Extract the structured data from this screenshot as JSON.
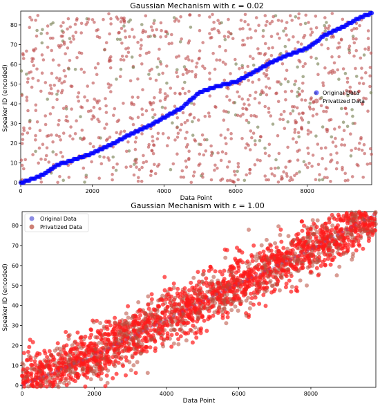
{
  "chart_data": [
    {
      "type": "scatter",
      "title": "Gaussian Mechanism with ε = 0.02",
      "xlabel": "Data Point",
      "ylabel": "Speaker ID (encoded)",
      "xlim": [
        0,
        9800
      ],
      "ylim": [
        -1,
        87
      ],
      "xticks": [
        0,
        2000,
        4000,
        6000,
        8000
      ],
      "yticks": [
        0,
        10,
        20,
        30,
        40,
        50,
        60,
        70,
        80
      ],
      "grid": false,
      "legend_position": "center-right",
      "n_points": 9800,
      "series": [
        {
          "name": "Original Data",
          "color": "#0000ff",
          "description_pattern": "monotonic staircase from (0,0) to (9800,86)",
          "points": [
            [
              0,
              0
            ],
            [
              200,
              1
            ],
            [
              500,
              3
            ],
            [
              800,
              6
            ],
            [
              1000,
              9
            ],
            [
              1400,
              11
            ],
            [
              2000,
              15
            ],
            [
              2500,
              19
            ],
            [
              3000,
              24
            ],
            [
              3500,
              28
            ],
            [
              4000,
              33
            ],
            [
              4500,
              38
            ],
            [
              5000,
              46
            ],
            [
              5500,
              49
            ],
            [
              6000,
              51
            ],
            [
              6500,
              56
            ],
            [
              7000,
              61
            ],
            [
              7500,
              65
            ],
            [
              8000,
              68
            ],
            [
              8500,
              75
            ],
            [
              9000,
              79
            ],
            [
              9500,
              84
            ],
            [
              9800,
              86
            ]
          ]
        },
        {
          "name": "Privatized Data",
          "color": "#bc4b4b",
          "distribution": "uniform noise over full range",
          "y_range": [
            0,
            86
          ]
        }
      ]
    },
    {
      "type": "scatter",
      "title": "Gaussian Mechanism with ε = 1.00",
      "xlabel": "Data Point",
      "ylabel": "Speaker ID (encoded)",
      "xlim": [
        0,
        9800
      ],
      "ylim": [
        -1,
        87
      ],
      "xticks": [
        0,
        2000,
        4000,
        6000,
        8000
      ],
      "yticks": [
        0,
        10,
        20,
        30,
        40,
        50,
        60,
        70,
        80
      ],
      "grid": false,
      "legend_position": "top-left",
      "n_points": 9800,
      "series": [
        {
          "name": "Original Data",
          "color": "#5a5ad6",
          "points": [
            [
              0,
              0
            ],
            [
              2000,
              15
            ],
            [
              4000,
              33
            ],
            [
              6000,
              51
            ],
            [
              8000,
              68
            ],
            [
              9800,
              86
            ]
          ]
        },
        {
          "name": "Privatized Data",
          "color": "#b84a3a",
          "noise_std": 6.5,
          "band_trend": [
            [
              0,
              0
            ],
            [
              2000,
              15
            ],
            [
              4000,
              33
            ],
            [
              6000,
              51
            ],
            [
              8000,
              68
            ],
            [
              9800,
              86
            ]
          ]
        }
      ]
    }
  ]
}
